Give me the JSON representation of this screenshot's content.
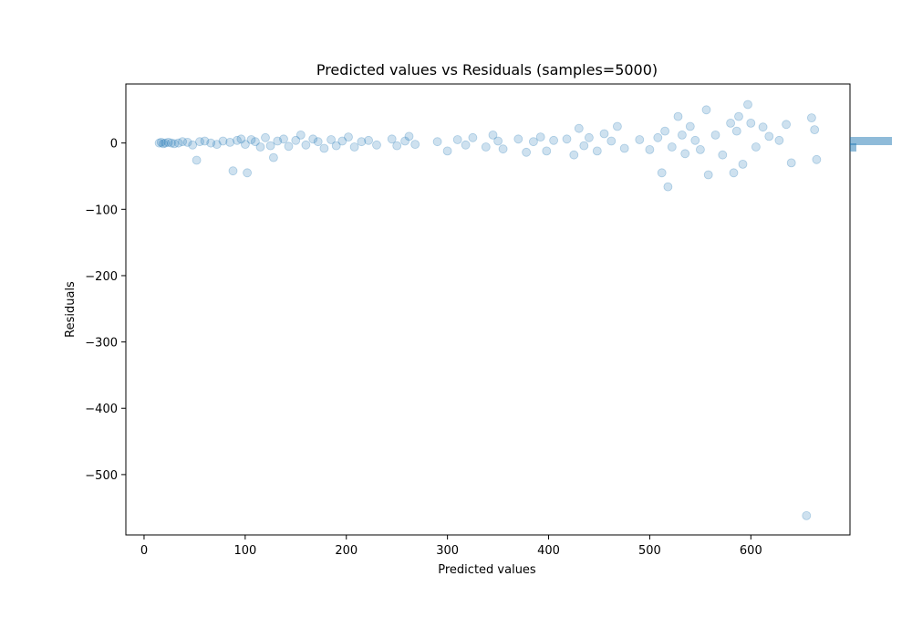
{
  "chart_data": {
    "type": "scatter",
    "title": "Predicted values vs Residuals (samples=5000)",
    "xlabel": "Predicted values",
    "ylabel": "Residuals",
    "xlim": [
      -18,
      698
    ],
    "ylim": [
      -591,
      89
    ],
    "xticks": [
      0,
      100,
      200,
      300,
      400,
      500,
      600
    ],
    "yticks": [
      0,
      -100,
      -200,
      -300,
      -400,
      -500
    ],
    "xtick_labels": [
      "0",
      "100",
      "200",
      "300",
      "400",
      "500",
      "600"
    ],
    "ytick_labels": [
      "0",
      "−100",
      "−200",
      "−300",
      "−400",
      "−500"
    ],
    "grid": false,
    "marker_color": "#1f77b4",
    "marker_alpha": 0.22,
    "sample_count": 5000,
    "points": [
      [
        15,
        0
      ],
      [
        17,
        1
      ],
      [
        19,
        -1
      ],
      [
        21,
        0
      ],
      [
        24,
        1
      ],
      [
        27,
        0
      ],
      [
        30,
        -1
      ],
      [
        34,
        0
      ],
      [
        38,
        2
      ],
      [
        43,
        1
      ],
      [
        48,
        -3
      ],
      [
        52,
        -26
      ],
      [
        55,
        2
      ],
      [
        60,
        3
      ],
      [
        66,
        0
      ],
      [
        72,
        -2
      ],
      [
        78,
        3
      ],
      [
        85,
        1
      ],
      [
        88,
        -42
      ],
      [
        92,
        4
      ],
      [
        96,
        6
      ],
      [
        100,
        -2
      ],
      [
        102,
        -45
      ],
      [
        106,
        5
      ],
      [
        110,
        2
      ],
      [
        115,
        -6
      ],
      [
        120,
        8
      ],
      [
        125,
        -4
      ],
      [
        128,
        -22
      ],
      [
        132,
        3
      ],
      [
        138,
        6
      ],
      [
        143,
        -5
      ],
      [
        150,
        4
      ],
      [
        155,
        12
      ],
      [
        160,
        -3
      ],
      [
        167,
        6
      ],
      [
        172,
        2
      ],
      [
        178,
        -8
      ],
      [
        185,
        5
      ],
      [
        190,
        -4
      ],
      [
        196,
        3
      ],
      [
        202,
        9
      ],
      [
        208,
        -6
      ],
      [
        215,
        2
      ],
      [
        222,
        4
      ],
      [
        230,
        -3
      ],
      [
        245,
        6
      ],
      [
        250,
        -4
      ],
      [
        258,
        3
      ],
      [
        262,
        10
      ],
      [
        268,
        -2
      ],
      [
        290,
        2
      ],
      [
        300,
        -12
      ],
      [
        310,
        5
      ],
      [
        318,
        -3
      ],
      [
        325,
        8
      ],
      [
        338,
        -6
      ],
      [
        345,
        12
      ],
      [
        350,
        3
      ],
      [
        355,
        -9
      ],
      [
        370,
        6
      ],
      [
        378,
        -14
      ],
      [
        385,
        2
      ],
      [
        392,
        9
      ],
      [
        398,
        -12
      ],
      [
        405,
        4
      ],
      [
        418,
        6
      ],
      [
        425,
        -18
      ],
      [
        430,
        22
      ],
      [
        435,
        -4
      ],
      [
        440,
        8
      ],
      [
        448,
        -12
      ],
      [
        455,
        14
      ],
      [
        462,
        3
      ],
      [
        468,
        25
      ],
      [
        475,
        -8
      ],
      [
        490,
        5
      ],
      [
        500,
        -10
      ],
      [
        508,
        8
      ],
      [
        512,
        -45
      ],
      [
        515,
        18
      ],
      [
        518,
        -66
      ],
      [
        522,
        -6
      ],
      [
        528,
        40
      ],
      [
        532,
        12
      ],
      [
        535,
        -16
      ],
      [
        540,
        25
      ],
      [
        545,
        4
      ],
      [
        550,
        -10
      ],
      [
        556,
        50
      ],
      [
        558,
        -48
      ],
      [
        565,
        12
      ],
      [
        572,
        -18
      ],
      [
        580,
        30
      ],
      [
        583,
        -45
      ],
      [
        586,
        18
      ],
      [
        588,
        40
      ],
      [
        592,
        -32
      ],
      [
        597,
        58
      ],
      [
        600,
        30
      ],
      [
        605,
        -6
      ],
      [
        612,
        24
      ],
      [
        618,
        10
      ],
      [
        628,
        4
      ],
      [
        635,
        28
      ],
      [
        640,
        -30
      ],
      [
        655,
        -562
      ],
      [
        660,
        38
      ],
      [
        663,
        20
      ],
      [
        665,
        -25
      ]
    ]
  }
}
